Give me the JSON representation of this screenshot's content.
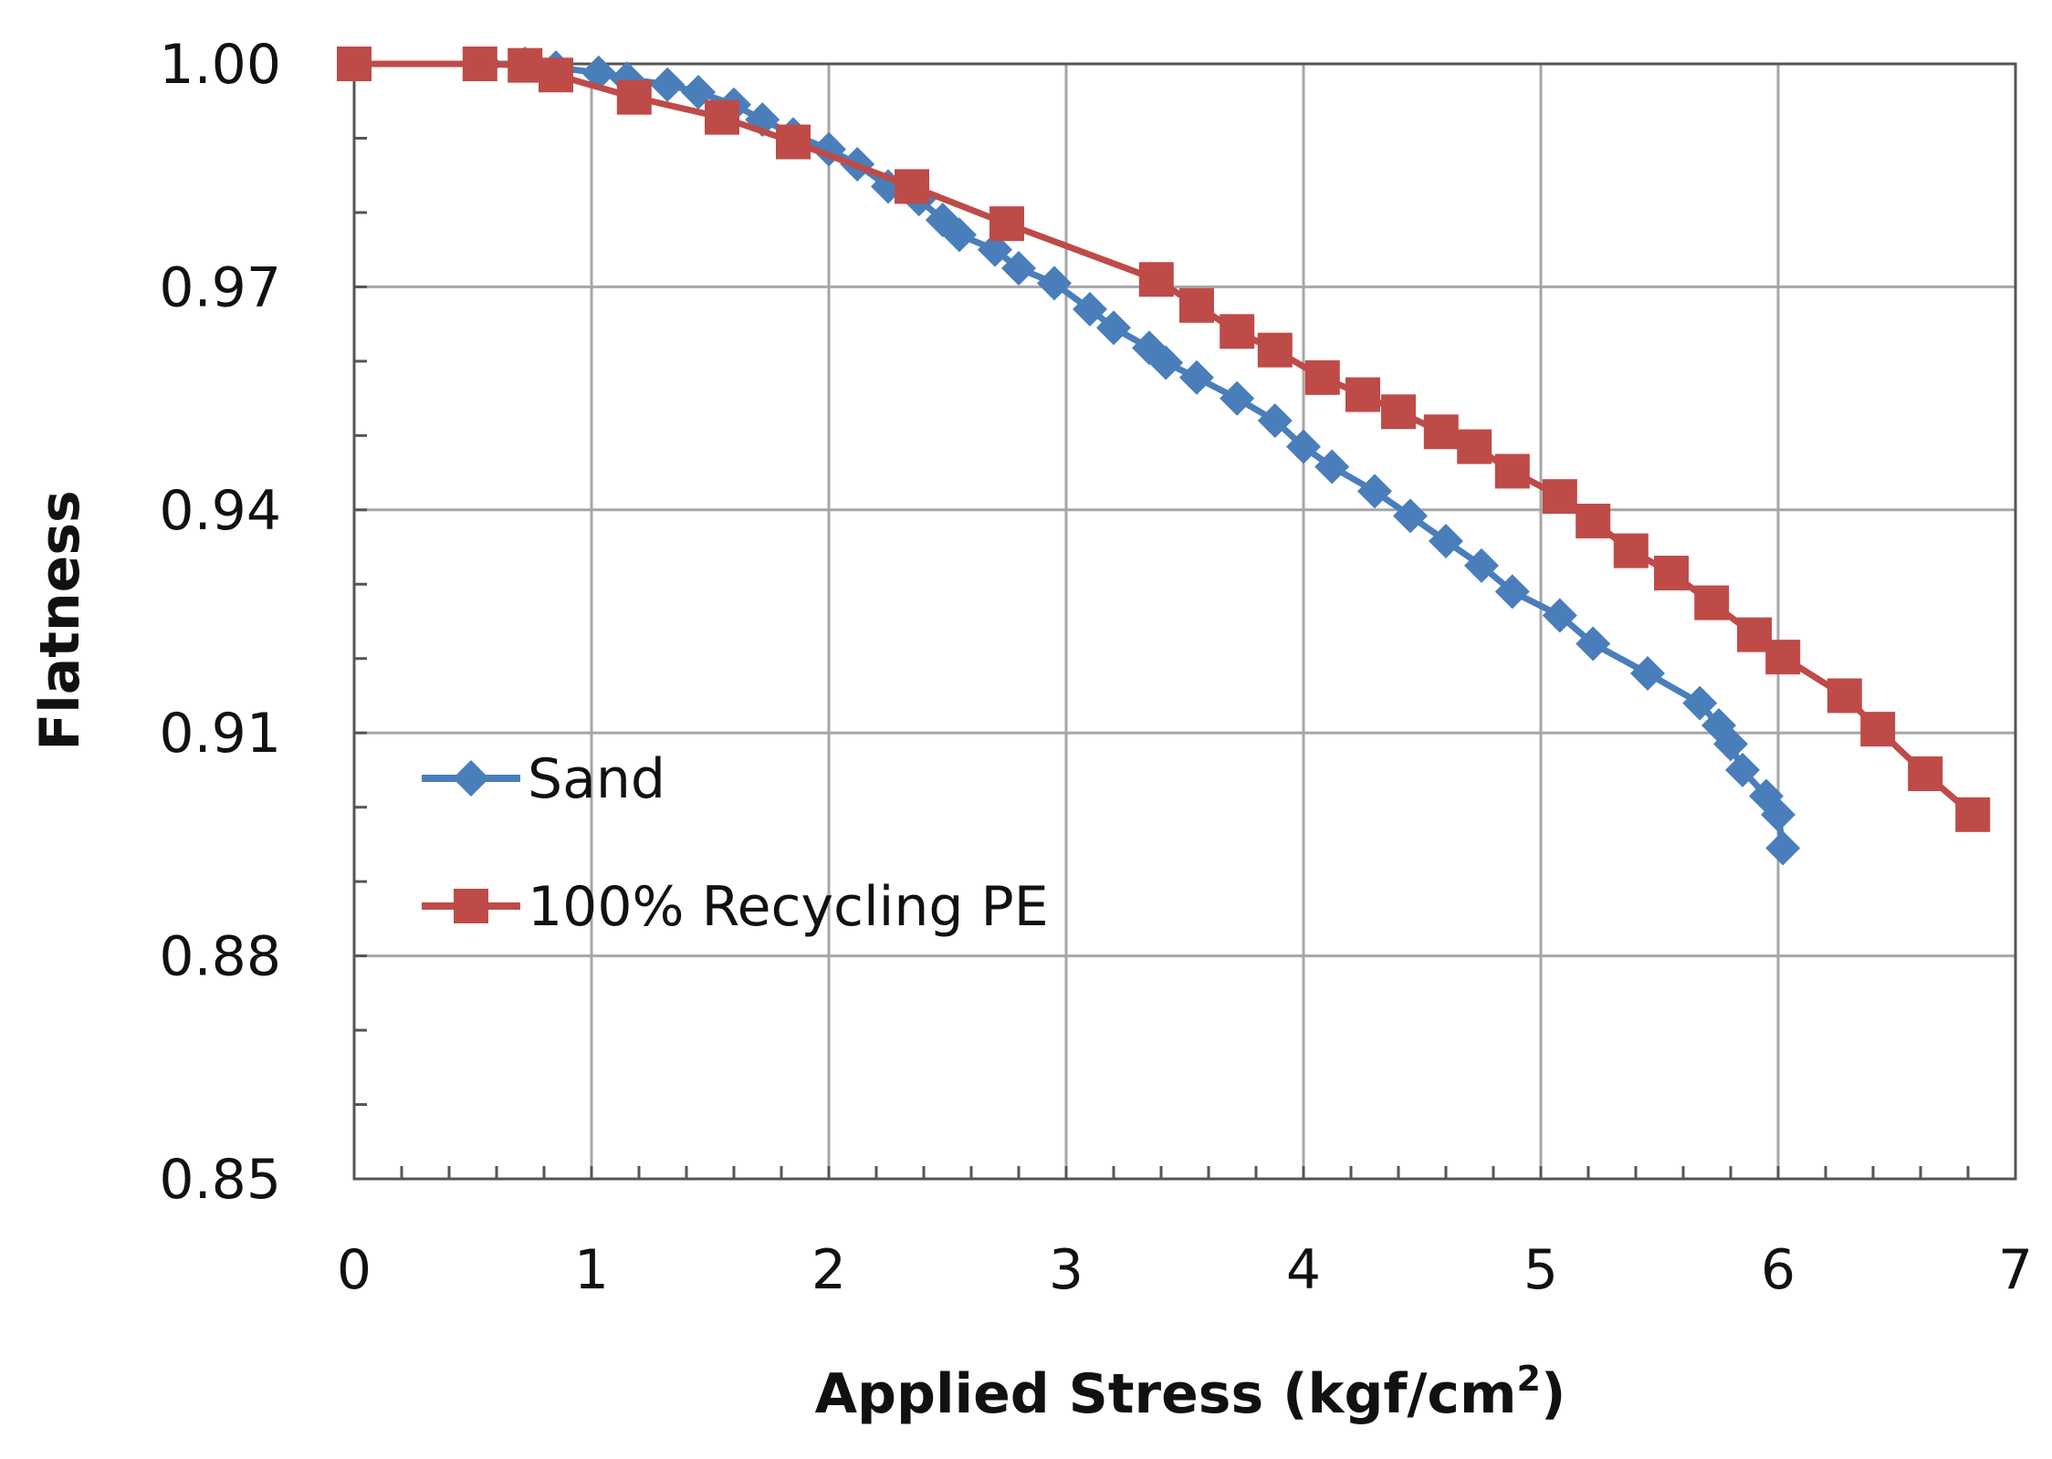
{
  "chart_data": {
    "type": "line",
    "title": "",
    "xlabel": "Applied Stress (kgf/cm",
    "xlabel_superscript": "2",
    "xlabel_close": ")",
    "ylabel": "Flatness",
    "xlim": [
      0,
      7
    ],
    "ylim": [
      0.85,
      1.0
    ],
    "grid": true,
    "legend_position": "center-left",
    "x_ticks": [
      {
        "value": 0,
        "label": "0"
      },
      {
        "value": 1,
        "label": "1"
      },
      {
        "value": 2,
        "label": "2"
      },
      {
        "value": 3,
        "label": "3"
      },
      {
        "value": 4,
        "label": "4"
      },
      {
        "value": 5,
        "label": "5"
      },
      {
        "value": 6,
        "label": "6"
      },
      {
        "value": 7,
        "label": "7"
      }
    ],
    "y_ticks": [
      {
        "value": 0.85,
        "label": "0.85"
      },
      {
        "value": 0.88,
        "label": "0.88"
      },
      {
        "value": 0.91,
        "label": "0.91"
      },
      {
        "value": 0.94,
        "label": "0.94"
      },
      {
        "value": 0.97,
        "label": "0.97"
      },
      {
        "value": 1.0,
        "label": "1.00"
      }
    ],
    "series": [
      {
        "name": "Sand",
        "marker": "diamond",
        "color": "#4a7ebb",
        "points": [
          [
            0.55,
            1.0
          ],
          [
            0.72,
            1.0
          ],
          [
            0.85,
            0.9995
          ],
          [
            1.03,
            0.9988
          ],
          [
            1.15,
            0.998
          ],
          [
            1.32,
            0.9972
          ],
          [
            1.45,
            0.9962
          ],
          [
            1.6,
            0.9945
          ],
          [
            1.72,
            0.9925
          ],
          [
            1.85,
            0.9905
          ],
          [
            2.0,
            0.9885
          ],
          [
            2.12,
            0.9865
          ],
          [
            2.25,
            0.9835
          ],
          [
            2.38,
            0.9818
          ],
          [
            2.48,
            0.979
          ],
          [
            2.55,
            0.977
          ],
          [
            2.7,
            0.975
          ],
          [
            2.8,
            0.9725
          ],
          [
            2.95,
            0.9705
          ],
          [
            3.1,
            0.967
          ],
          [
            3.2,
            0.9645
          ],
          [
            3.35,
            0.9618
          ],
          [
            3.42,
            0.9598
          ],
          [
            3.55,
            0.9578
          ],
          [
            3.72,
            0.955
          ],
          [
            3.88,
            0.952
          ],
          [
            4.0,
            0.9485
          ],
          [
            4.12,
            0.9458
          ],
          [
            4.3,
            0.9425
          ],
          [
            4.45,
            0.9392
          ],
          [
            4.6,
            0.9358
          ],
          [
            4.75,
            0.9325
          ],
          [
            4.88,
            0.929
          ],
          [
            5.08,
            0.9258
          ],
          [
            5.22,
            0.922
          ],
          [
            5.45,
            0.918
          ],
          [
            5.67,
            0.914
          ],
          [
            5.75,
            0.911
          ],
          [
            5.8,
            0.9085
          ],
          [
            5.85,
            0.905
          ],
          [
            5.95,
            0.9015
          ],
          [
            6.0,
            0.899
          ],
          [
            6.02,
            0.8945
          ]
        ]
      },
      {
        "name": "100% Recycling PE",
        "marker": "square",
        "color": "#be4b48",
        "points": [
          [
            0.0,
            1.0
          ],
          [
            0.53,
            1.0
          ],
          [
            0.72,
            0.9998
          ],
          [
            0.85,
            0.9985
          ],
          [
            1.18,
            0.9955
          ],
          [
            1.55,
            0.9928
          ],
          [
            1.85,
            0.9895
          ],
          [
            2.35,
            0.9835
          ],
          [
            2.75,
            0.9785
          ],
          [
            3.38,
            0.971
          ],
          [
            3.55,
            0.9675
          ],
          [
            3.72,
            0.964
          ],
          [
            3.88,
            0.9615
          ],
          [
            4.08,
            0.9578
          ],
          [
            4.25,
            0.9555
          ],
          [
            4.4,
            0.9532
          ],
          [
            4.58,
            0.9505
          ],
          [
            4.72,
            0.9485
          ],
          [
            4.88,
            0.9452
          ],
          [
            5.08,
            0.9418
          ],
          [
            5.22,
            0.9385
          ],
          [
            5.38,
            0.9345
          ],
          [
            5.55,
            0.9315
          ],
          [
            5.72,
            0.9275
          ],
          [
            5.9,
            0.9232
          ],
          [
            6.02,
            0.9202
          ],
          [
            6.28,
            0.915
          ],
          [
            6.42,
            0.9105
          ],
          [
            6.62,
            0.9045
          ],
          [
            6.82,
            0.899
          ]
        ]
      }
    ]
  }
}
